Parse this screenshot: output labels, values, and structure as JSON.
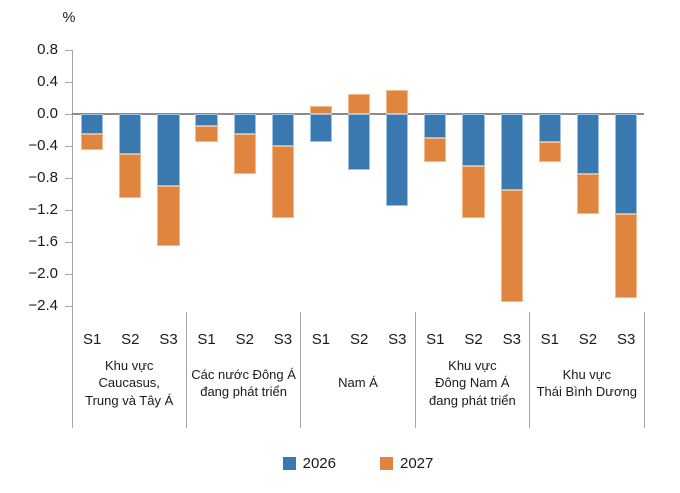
{
  "chart": {
    "unit": "%",
    "y_axis": {
      "tick_labels": [
        "0.8",
        "0.4",
        "0.0",
        "−0.4",
        "−0.8",
        "−1.2",
        "−1.6",
        "−2.0",
        "−2.4"
      ],
      "tick_values": [
        0.8,
        0.4,
        0.0,
        -0.4,
        -0.8,
        -1.2,
        -1.6,
        -2.0,
        -2.4
      ]
    },
    "colors": {
      "series_2026": "#3a79b0",
      "series_2026_border": "#9cc2e5",
      "series_2027": "#e0853f",
      "series_2027_border": "#f4ba8c",
      "axis": "#a6a6a6",
      "zero_line": "#8c8c8c",
      "text": "#1a1a1a"
    }
  },
  "chart_data": {
    "type": "bar",
    "stacked": true,
    "title": "",
    "ylabel": "%",
    "xlabel": "",
    "ylim": [
      -2.4,
      0.8
    ],
    "ytick_step": 0.4,
    "grid": false,
    "legend_position": "bottom",
    "groups": [
      {
        "label": "Khu vực Caucasus, Trung và Tây Á",
        "label_lines": [
          "Khu vực",
          "Caucasus,",
          "Trung và Tây Á"
        ],
        "scenarios": [
          "S1",
          "S2",
          "S3"
        ]
      },
      {
        "label": "Các nước Đông Á đang phát triển",
        "label_lines": [
          "Các nước Đông Á",
          "đang phát triển"
        ],
        "scenarios": [
          "S1",
          "S2",
          "S3"
        ]
      },
      {
        "label": "Nam Á",
        "label_lines": [
          "Nam Á"
        ],
        "scenarios": [
          "S1",
          "S2",
          "S3"
        ]
      },
      {
        "label": "Khu vực Đông Nam Á đang phát triển",
        "label_lines": [
          "Khu vực",
          "Đông Nam Á",
          "đang phát triển"
        ],
        "scenarios": [
          "S1",
          "S2",
          "S3"
        ]
      },
      {
        "label": "Khu vực Thái Bình Dương",
        "label_lines": [
          "Khu vực",
          "Thái Bình Dương"
        ],
        "scenarios": [
          "S1",
          "S2",
          "S3"
        ]
      }
    ],
    "categories": [
      "S1",
      "S2",
      "S3",
      "S1",
      "S2",
      "S3",
      "S1",
      "S2",
      "S3",
      "S1",
      "S2",
      "S3",
      "S1",
      "S2",
      "S3"
    ],
    "series": [
      {
        "name": "2026",
        "color": "#3a79b0",
        "border": "#9cc2e5",
        "values": [
          -0.25,
          -0.5,
          -0.9,
          -0.15,
          -0.25,
          -0.4,
          -0.35,
          -0.7,
          -1.15,
          -0.3,
          -0.65,
          -0.95,
          -0.35,
          -0.75,
          -1.25
        ]
      },
      {
        "name": "2027",
        "color": "#e0853f",
        "border": "#f4ba8c",
        "values": [
          -0.2,
          -0.55,
          -0.75,
          -0.2,
          -0.5,
          -0.9,
          0.1,
          0.25,
          0.3,
          -0.3,
          -0.65,
          -1.4,
          -0.25,
          -0.5,
          -1.05
        ]
      }
    ]
  }
}
